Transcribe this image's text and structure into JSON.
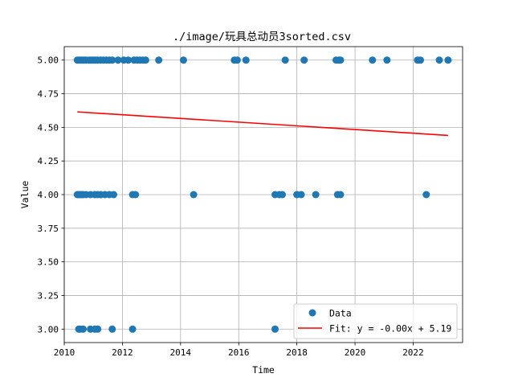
{
  "chart_data": {
    "type": "scatter",
    "title": "./image/玩具总动员3sorted.csv",
    "xlabel": "Time",
    "ylabel": "Value",
    "xlim": [
      2010.0,
      2023.7
    ],
    "ylim": [
      2.9,
      5.1
    ],
    "x_ticks": [
      2010,
      2012,
      2014,
      2016,
      2018,
      2020,
      2022
    ],
    "y_ticks": [
      3.0,
      3.25,
      3.5,
      3.75,
      4.0,
      4.25,
      4.5,
      4.75,
      5.0
    ],
    "x_tick_labels": [
      "2010",
      "2012",
      "2014",
      "2016",
      "2018",
      "2020",
      "2022"
    ],
    "y_tick_labels": [
      "3.00",
      "3.25",
      "3.50",
      "3.75",
      "4.00",
      "4.25",
      "4.50",
      "4.75",
      "5.00"
    ],
    "grid": true,
    "legend_position": "lower-right",
    "series": [
      {
        "name": "Data",
        "kind": "scatter",
        "color": "#1f77b4",
        "points": [
          [
            2010.45,
            5.0
          ],
          [
            2010.5,
            5.0
          ],
          [
            2010.55,
            5.0
          ],
          [
            2010.6,
            5.0
          ],
          [
            2010.65,
            5.0
          ],
          [
            2010.7,
            5.0
          ],
          [
            2010.75,
            5.0
          ],
          [
            2010.85,
            5.0
          ],
          [
            2010.9,
            5.0
          ],
          [
            2010.95,
            5.0
          ],
          [
            2011.0,
            5.0
          ],
          [
            2011.05,
            5.0
          ],
          [
            2011.1,
            5.0
          ],
          [
            2011.15,
            5.0
          ],
          [
            2011.25,
            5.0
          ],
          [
            2011.35,
            5.0
          ],
          [
            2011.45,
            5.0
          ],
          [
            2011.55,
            5.0
          ],
          [
            2011.65,
            5.0
          ],
          [
            2011.85,
            5.0
          ],
          [
            2012.05,
            5.0
          ],
          [
            2012.2,
            5.0
          ],
          [
            2012.4,
            5.0
          ],
          [
            2012.5,
            5.0
          ],
          [
            2012.6,
            5.0
          ],
          [
            2012.7,
            5.0
          ],
          [
            2012.8,
            5.0
          ],
          [
            2013.25,
            5.0
          ],
          [
            2014.1,
            5.0
          ],
          [
            2015.85,
            5.0
          ],
          [
            2015.95,
            5.0
          ],
          [
            2016.25,
            5.0
          ],
          [
            2017.6,
            5.0
          ],
          [
            2018.25,
            5.0
          ],
          [
            2019.35,
            5.0
          ],
          [
            2019.45,
            5.0
          ],
          [
            2019.5,
            5.0
          ],
          [
            2020.6,
            5.0
          ],
          [
            2021.1,
            5.0
          ],
          [
            2022.15,
            5.0
          ],
          [
            2022.25,
            5.0
          ],
          [
            2022.9,
            5.0
          ],
          [
            2023.2,
            5.0
          ],
          [
            2010.45,
            4.0
          ],
          [
            2010.5,
            4.0
          ],
          [
            2010.55,
            4.0
          ],
          [
            2010.6,
            4.0
          ],
          [
            2010.65,
            4.0
          ],
          [
            2010.75,
            4.0
          ],
          [
            2010.9,
            4.0
          ],
          [
            2011.05,
            4.0
          ],
          [
            2011.15,
            4.0
          ],
          [
            2011.25,
            4.0
          ],
          [
            2011.4,
            4.0
          ],
          [
            2011.55,
            4.0
          ],
          [
            2011.7,
            4.0
          ],
          [
            2012.35,
            4.0
          ],
          [
            2012.45,
            4.0
          ],
          [
            2014.45,
            4.0
          ],
          [
            2017.25,
            4.0
          ],
          [
            2017.4,
            4.0
          ],
          [
            2017.5,
            4.0
          ],
          [
            2018.0,
            4.0
          ],
          [
            2018.15,
            4.0
          ],
          [
            2018.65,
            4.0
          ],
          [
            2019.4,
            4.0
          ],
          [
            2019.5,
            4.0
          ],
          [
            2022.45,
            4.0
          ],
          [
            2010.5,
            3.0
          ],
          [
            2010.55,
            3.0
          ],
          [
            2010.65,
            3.0
          ],
          [
            2010.9,
            3.0
          ],
          [
            2011.05,
            3.0
          ],
          [
            2011.15,
            3.0
          ],
          [
            2011.65,
            3.0
          ],
          [
            2012.35,
            3.0
          ],
          [
            2017.25,
            3.0
          ]
        ]
      },
      {
        "name": "Fit: y = -0.00x + 5.19",
        "kind": "line",
        "color": "#ff0000",
        "x": [
          2010.45,
          2023.2
        ],
        "y": [
          4.615,
          4.44
        ]
      }
    ]
  }
}
